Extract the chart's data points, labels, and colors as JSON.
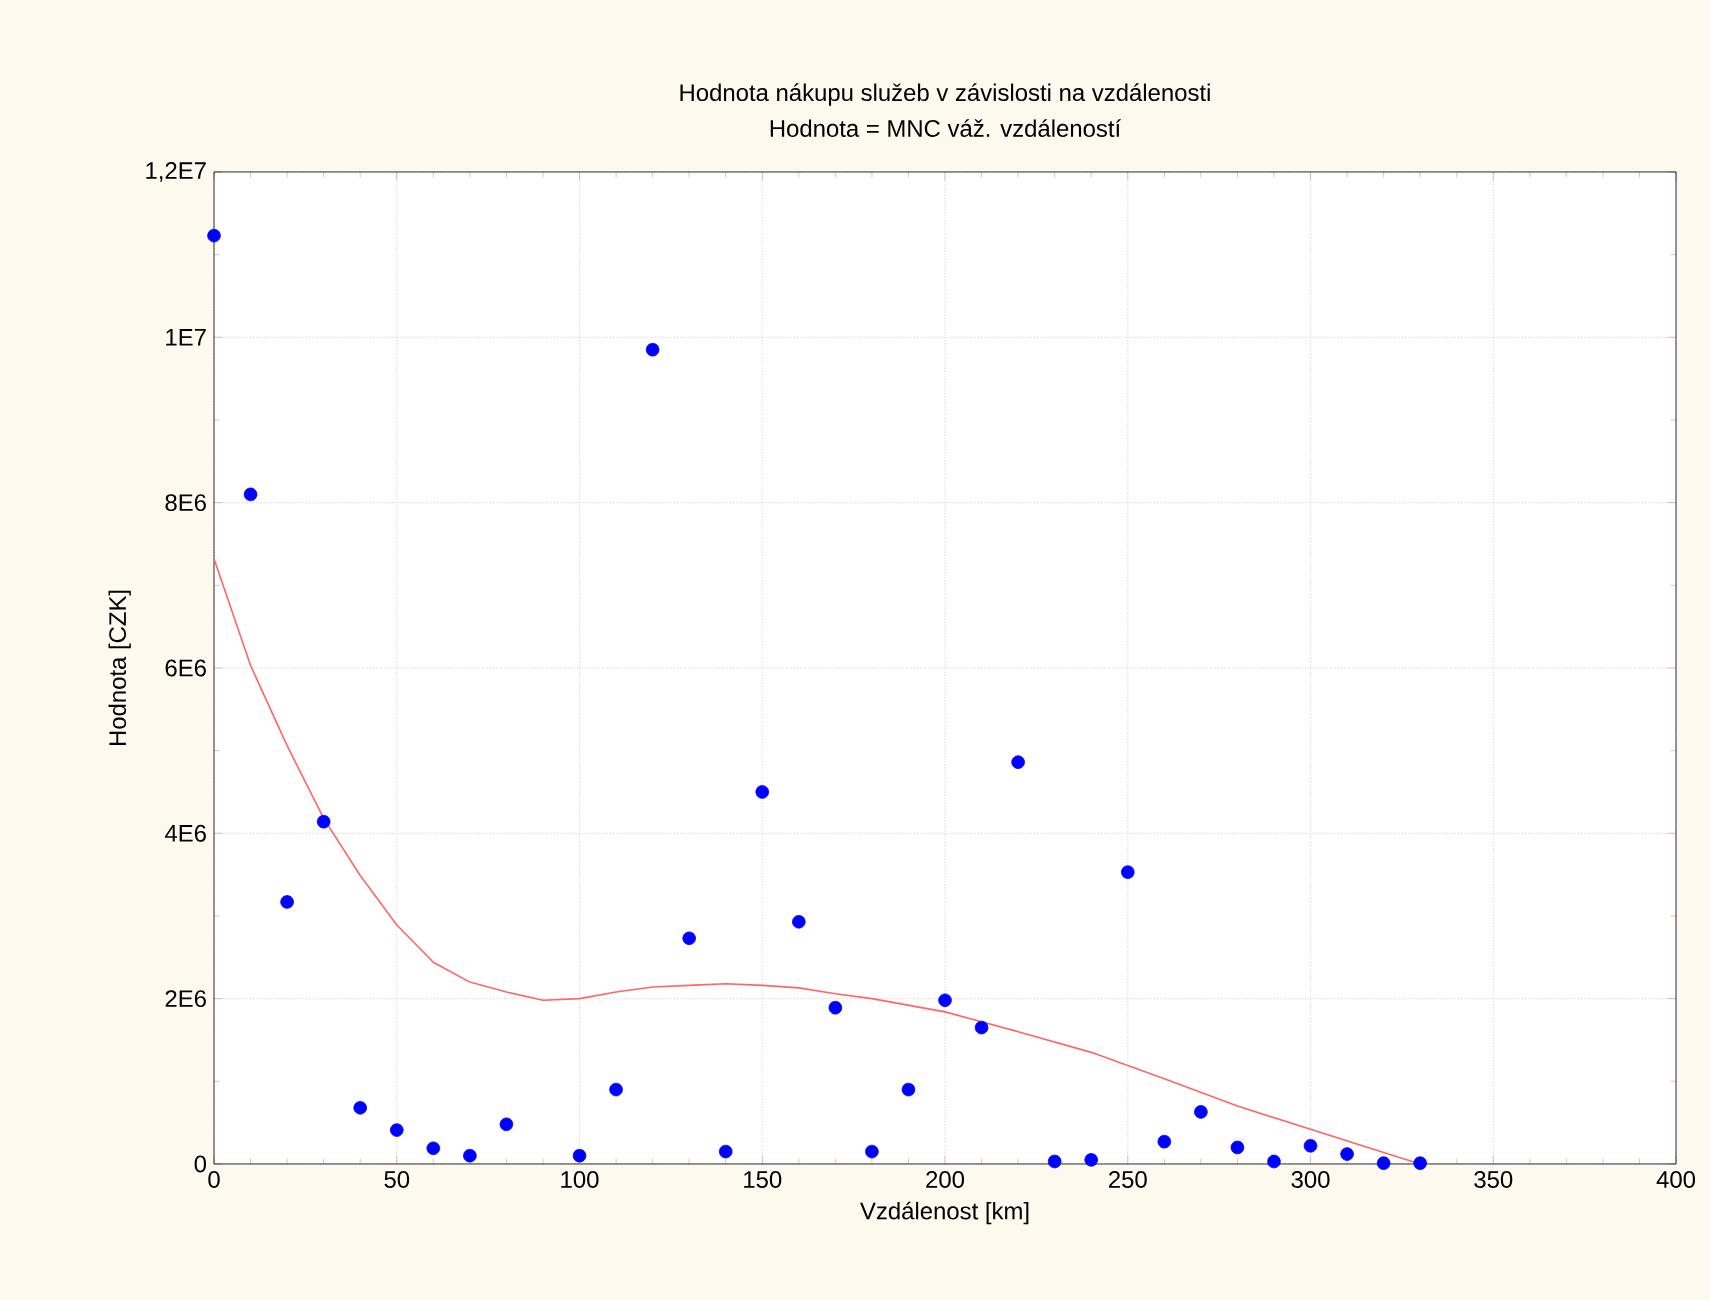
{
  "chart_data": {
    "type": "scatter",
    "title": "Hodnota nákupu služeb v závislosti na vzdálenosti",
    "subtitle": "Hodnota = MNC váž. vzdáleností",
    "xlabel": "Vzdálenost [km]",
    "ylabel": "Hodnota [CZK]",
    "xlim": [
      0,
      400
    ],
    "xticks": [
      0,
      50,
      100,
      150,
      200,
      250,
      300,
      350,
      400
    ],
    "ylim": [
      0,
      12000000
    ],
    "yticks": [
      {
        "value": 0,
        "label": "0"
      },
      {
        "value": 2000000,
        "label": "2E6"
      },
      {
        "value": 4000000,
        "label": "4E6"
      },
      {
        "value": 6000000,
        "label": "6E6"
      },
      {
        "value": 8000000,
        "label": "8E6"
      },
      {
        "value": 10000000,
        "label": "1E7"
      },
      {
        "value": 12000000,
        "label": "1,2E7"
      }
    ],
    "grid": true,
    "series": [
      {
        "color": "#0000ff",
        "marker": "circle",
        "x": [
          0,
          10,
          20,
          30,
          40,
          50,
          60,
          70,
          80,
          100,
          110,
          120,
          130,
          140,
          150,
          160,
          170,
          180,
          190,
          200,
          210,
          220,
          230,
          240,
          250,
          260,
          270,
          280,
          290,
          300,
          310,
          320,
          330
        ],
        "values": [
          11230000,
          8100000,
          3170000,
          4140000,
          680000,
          410000,
          190000,
          100000,
          480000,
          100000,
          900000,
          9850000,
          2730000,
          150000,
          4500000,
          2930000,
          1890000,
          150000,
          900000,
          1980000,
          1650000,
          4860000,
          30000,
          50000,
          3530000,
          270000,
          630000,
          200000,
          30000,
          220000,
          120000,
          10000,
          10000
        ]
      },
      {
        "type": "line",
        "color": "#ff6666",
        "marker": "none",
        "line_style": "solid",
        "x": [
          0,
          10,
          20,
          30,
          40,
          50,
          60,
          70,
          80,
          90,
          100,
          110,
          120,
          130,
          140,
          150,
          160,
          170,
          180,
          200,
          220,
          240,
          250,
          260,
          280,
          300,
          320,
          330
        ],
        "values": [
          7320000,
          6030000,
          5060000,
          4180000,
          3490000,
          2890000,
          2440000,
          2200000,
          2080000,
          1980000,
          2000000,
          2080000,
          2140000,
          2160000,
          2180000,
          2160000,
          2130000,
          2060000,
          2000000,
          1840000,
          1600000,
          1350000,
          1190000,
          1030000,
          700000,
          420000,
          140000,
          0
        ]
      }
    ]
  }
}
